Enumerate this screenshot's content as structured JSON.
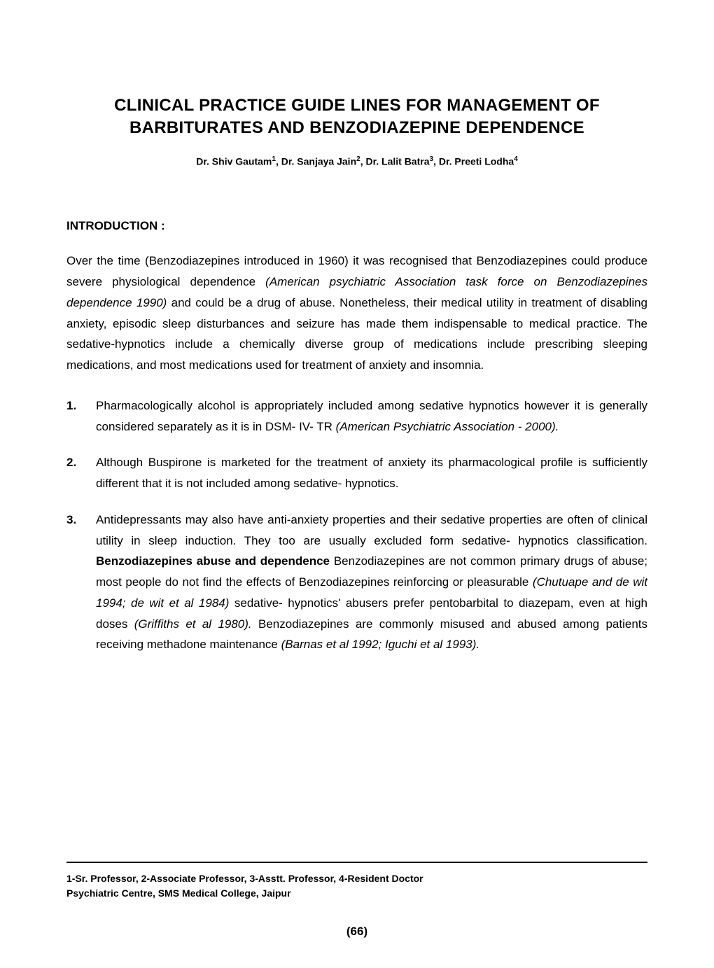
{
  "title": "CLINICAL PRACTICE GUIDE LINES FOR MANAGEMENT OF BARBITURATES AND BENZODIAZEPINE DEPENDENCE",
  "authors_html": "Dr. Shiv Gautam<sup>1</sup>, Dr. Sanjaya Jain<sup>2</sup>, Dr. Lalit Batra<sup>3</sup>, Dr. Preeti Lodha<sup>4</sup>",
  "section_heading": "INTRODUCTION :",
  "intro_html": "Over the time (Benzodiazepines introduced in 1960) it was recognised that Benzodiazepines could produce severe physiological dependence <span class=\"it\">(American psychiatric Association task force on Benzodiazepines dependence 1990)</span> and could be a drug of abuse. Nonetheless, their medical utility in treatment of disabling anxiety, episodic sleep disturbances and seizure has made them indispensable to medical practice. The sedative-hypnotics include a chemically diverse group of medications include prescribing sleeping medications, and most medications used for treatment of anxiety and insomnia.",
  "items": [
    {
      "num": "1.",
      "html": "Pharmacologically alcohol is appropriately included among sedative hypnotics however it is generally considered separately as it is in DSM- IV- TR <span class=\"it\">(American Psychiatric Association - 2000).</span>"
    },
    {
      "num": "2.",
      "html": "Although Buspirone is marketed for the treatment of anxiety its pharmacological profile is sufficiently different that it is not included among sedative- hypnotics."
    },
    {
      "num": "3.",
      "html": "Antidepressants may also have anti-anxiety properties and their sedative properties are often of clinical utility in sleep induction. They too are usually excluded form sedative- hypnotics classification. <span class=\"bld\">Benzodiazepines abuse and dependence</span> Benzodiazepines are not common primary drugs of abuse; most people do not find the effects of Benzodiazepines reinforcing or pleasurable <span class=\"it\">(Chutuape and de wit 1994; de wit et al 1984)</span> sedative- hypnotics' abusers prefer pentobarbital to diazepam, even at high doses <span class=\"it\">(Griffiths et al 1980).</span> Benzodiazepines are commonly misused and abused among patients receiving methadone maintenance <span class=\"it\">(Barnas et al 1992; Iguchi et al 1993).</span>"
    }
  ],
  "footnote_line1": "1-Sr. Professor, 2-Associate Professor, 3-Asstt. Professor, 4-Resident Doctor",
  "footnote_line2": "Psychiatric Centre, SMS Medical College, Jaipur",
  "page_number": "(66)"
}
